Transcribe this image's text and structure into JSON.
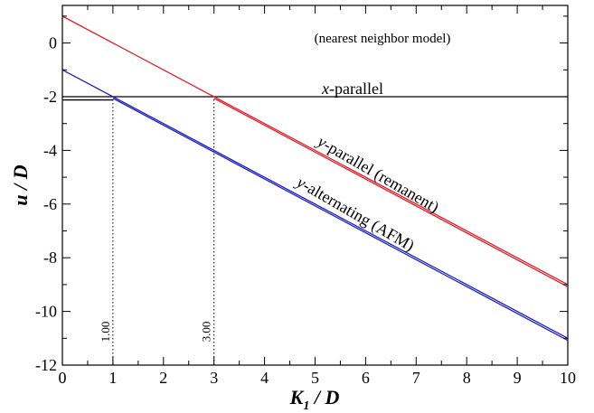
{
  "chart_data": {
    "type": "line",
    "note": "(nearest neighbor model)",
    "xlabel": {
      "main": "K",
      "sub": "1",
      "rest": " / D"
    },
    "ylabel": "u / D",
    "xlim": [
      0,
      10
    ],
    "ylim": [
      -12,
      1.4
    ],
    "xticks": [
      0,
      1,
      2,
      3,
      4,
      5,
      6,
      7,
      8,
      9,
      10
    ],
    "yticks": [
      0,
      -2,
      -4,
      -6,
      -8,
      -10,
      -12
    ],
    "grid": false,
    "series": [
      {
        "name": "x-parallel",
        "color": "#000000",
        "x": [
          0,
          10
        ],
        "y": [
          -2,
          -2
        ]
      },
      {
        "name": "y-parallel (remanent) upper",
        "color": "#e0202a",
        "x": [
          0,
          10
        ],
        "y": [
          1.0,
          -9.0
        ]
      },
      {
        "name": "y-parallel (remanent) lower",
        "color": "#e0202a",
        "x": [
          3,
          10
        ],
        "y": [
          -2.06,
          -9.08
        ]
      },
      {
        "name": "y-alternating (AFM) upper",
        "color": "#2020c0",
        "x": [
          0,
          10
        ],
        "y": [
          -1.0,
          -11.0
        ]
      },
      {
        "name": "y-alternating (AFM) lower",
        "color": "#2020c0",
        "x": [
          1,
          10
        ],
        "y": [
          -2.06,
          -11.08
        ]
      },
      {
        "name": "x-parallel offset",
        "color": "#000000",
        "x": [
          0,
          1
        ],
        "y": [
          -2.12,
          -2.12
        ]
      }
    ],
    "annotations": {
      "x_parallel": {
        "italic": "x",
        "rest": "-parallel"
      },
      "y_parallel": {
        "italic": "y",
        "rest": "-parallel (remanent)"
      },
      "y_alternating": {
        "italic": "y",
        "rest": "-alternating (AFM)"
      }
    },
    "vlines": [
      {
        "x": 1,
        "label": "1.00"
      },
      {
        "x": 3,
        "label": "3.00"
      }
    ]
  }
}
